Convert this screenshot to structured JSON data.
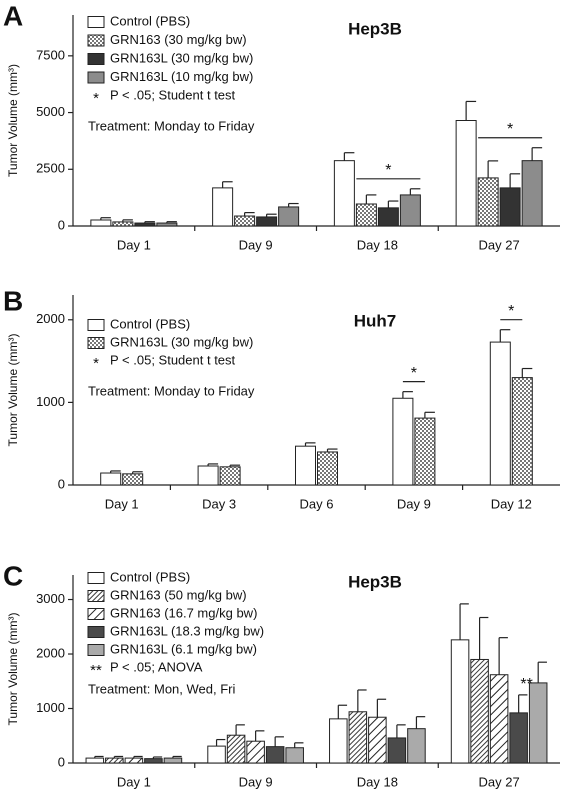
{
  "chart_data": [
    {
      "type": "bar",
      "panel": "A",
      "title": "Hep3B",
      "ylabel": "Tumor Volume (mm³)",
      "categories": [
        "Day 1",
        "Day 9",
        "Day 18",
        "Day 27"
      ],
      "series": [
        {
          "name": "Control (PBS)",
          "color": "#ffffff",
          "values": [
            265,
            1680,
            2880,
            4650
          ],
          "errors": [
            100,
            270,
            350,
            840
          ]
        },
        {
          "name": "GRN163 (30 mg/kg bw)",
          "color": "#ffffff",
          "pattern": "checker",
          "values": [
            180,
            440,
            970,
            2120
          ],
          "errors": [
            90,
            150,
            400,
            750
          ]
        },
        {
          "name": "GRN163L (30 mg/kg bw)",
          "color": "#333333",
          "values": [
            130,
            400,
            800,
            1680
          ],
          "errors": [
            60,
            120,
            300,
            620
          ]
        },
        {
          "name": "GRN163L (10 mg/kg bw)",
          "color": "#8c8c8c",
          "values": [
            130,
            840,
            1370,
            2880
          ],
          "errors": [
            60,
            150,
            270,
            570
          ]
        }
      ],
      "note_symbol": "*",
      "note": "P < .05; Student t test",
      "annotation": "Treatment: Monday to Friday",
      "significance": [
        {
          "category": "Day 18",
          "label": "*"
        },
        {
          "category": "Day 27",
          "label": "*"
        }
      ],
      "ylim": [
        0,
        9300
      ],
      "yticks": [
        0,
        2500,
        5000,
        7500
      ]
    },
    {
      "type": "bar",
      "panel": "B",
      "title": "Huh7",
      "ylabel": "Tumor Volume (mm³)",
      "categories": [
        "Day 1",
        "Day 3",
        "Day 6",
        "Day 9",
        "Day 12"
      ],
      "series": [
        {
          "name": "Control (PBS)",
          "color": "#ffffff",
          "values": [
            145,
            230,
            470,
            1050,
            1730
          ],
          "errors": [
            25,
            25,
            40,
            80,
            150
          ]
        },
        {
          "name": "GRN163L (30 mg/kg bw)",
          "color": "#ffffff",
          "pattern": "checker",
          "values": [
            135,
            220,
            400,
            810,
            1300
          ],
          "errors": [
            25,
            20,
            35,
            70,
            110
          ]
        }
      ],
      "note_symbol": "*",
      "note": "P < .05; Student t test",
      "annotation": "Treatment: Monday to Friday",
      "significance": [
        {
          "category": "Day 9",
          "label": "*"
        },
        {
          "category": "Day 12",
          "label": "*"
        }
      ],
      "ylim": [
        0,
        2300
      ],
      "yticks": [
        0,
        1000,
        2000
      ]
    },
    {
      "type": "bar",
      "panel": "C",
      "title": "Hep3B",
      "ylabel": "Tumor Volume (mm³)",
      "categories": [
        "Day 1",
        "Day 9",
        "Day 18",
        "Day 27"
      ],
      "series": [
        {
          "name": "Control (PBS)",
          "color": "#ffffff",
          "values": [
            90,
            310,
            810,
            2260
          ],
          "errors": [
            30,
            120,
            250,
            660
          ]
        },
        {
          "name": "GRN163 (50 mg/kg bw)",
          "color": "#ffffff",
          "pattern": "hatch-dense",
          "values": [
            90,
            510,
            940,
            1900
          ],
          "errors": [
            30,
            190,
            400,
            770
          ]
        },
        {
          "name": "GRN163 (16.7 mg/kg bw)",
          "color": "#ffffff",
          "pattern": "hatch-wide",
          "values": [
            90,
            400,
            840,
            1620
          ],
          "errors": [
            30,
            190,
            330,
            680
          ]
        },
        {
          "name": "GRN163L (18.3 mg/kg bw)",
          "color": "#4a4a4a",
          "values": [
            80,
            300,
            460,
            920
          ],
          "errors": [
            30,
            180,
            240,
            330
          ]
        },
        {
          "name": "GRN163L (6.1 mg/kg bw)",
          "color": "#aaaaaa",
          "values": [
            90,
            280,
            630,
            1470
          ],
          "errors": [
            30,
            90,
            220,
            380
          ]
        }
      ],
      "note_symbol": "**",
      "note": "P < .05; ANOVA",
      "annotation": "Treatment: Mon, Wed, Fri",
      "significance": [
        {
          "category": "Day 27",
          "series": "GRN163L (18.3 mg/kg bw)",
          "label": "**"
        }
      ],
      "ylim": [
        0,
        3450
      ],
      "yticks": [
        0,
        1000,
        2000,
        3000
      ]
    }
  ]
}
